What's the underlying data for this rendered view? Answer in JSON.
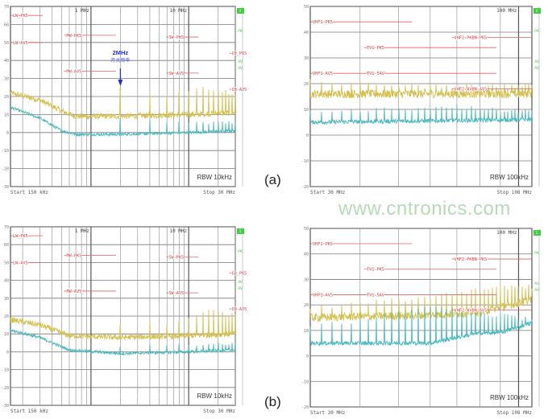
{
  "panels": {
    "a": "(a)",
    "b": "(b)"
  },
  "watermark": "www.cntronics.com",
  "annotation": {
    "freq": "2MHz",
    "text": "开关频率",
    "color": "#2233cc"
  },
  "colors": {
    "peak_trace": "#d4c050",
    "average_trace": "#4ab8c0",
    "limit": "#e06060",
    "grid": "#888888",
    "side_marker": "#44cc44"
  },
  "chart_data": [
    {
      "id": "a-left",
      "panel": "a",
      "type": "line",
      "x_scale": "log",
      "x_range_mhz": [
        0.15,
        30
      ],
      "ylim": [
        -30,
        70
      ],
      "yticks": [
        "70",
        "60",
        "50",
        "40",
        "30",
        "20",
        "10",
        "0",
        "-10",
        "-20",
        "-30"
      ],
      "grid_mhz": [
        0.2,
        0.3,
        0.4,
        0.5,
        0.6,
        0.7,
        0.8,
        0.9,
        1,
        2,
        3,
        4,
        5,
        6,
        7,
        8,
        9,
        10,
        20,
        30
      ],
      "freq_markers": [
        {
          "f": 1,
          "label": "1 MHz"
        },
        {
          "f": 10,
          "label": "10 MHz"
        }
      ],
      "start_label": "Start 150 kHz",
      "stop_label": "Stop 30 MHz",
      "rbw_label": "RBW 10kHz",
      "side_markers": [
        "1",
        "PK",
        "AV",
        "AV"
      ],
      "limits": [
        {
          "label": "LW_PK5",
          "f": [
            0.15,
            0.3
          ],
          "y": 65
        },
        {
          "label": "LW-AV5",
          "f": [
            0.15,
            0.3
          ],
          "y": 50
        },
        {
          "label": "MW-PK5",
          "f": [
            0.53,
            1.8
          ],
          "y": 54
        },
        {
          "label": "MW-AV5",
          "f": [
            0.53,
            1.8
          ],
          "y": 34
        },
        {
          "label": "SW-PK5",
          "f": [
            5.9,
            6.2
          ],
          "y": 53
        },
        {
          "label": "SW-AV5",
          "f": [
            5.9,
            6.2
          ],
          "y": 33
        },
        {
          "label": "CB_PK5",
          "f": [
            26,
            28
          ],
          "y": 44
        },
        {
          "label": "CB-AV5",
          "f": [
            26,
            28
          ],
          "y": 24
        }
      ],
      "series": [
        {
          "color": "#d4c050",
          "baseline": [
            [
              0.15,
              22
            ],
            [
              0.3,
              18
            ],
            [
              0.5,
              12
            ],
            [
              0.7,
              9
            ],
            [
              2,
              9
            ],
            [
              10,
              10
            ],
            [
              30,
              11
            ]
          ],
          "spike_spacing_mhz": 2,
          "spike_tops": [
            [
              2,
              25
            ],
            [
              6,
              21
            ],
            [
              12,
              26
            ],
            [
              16,
              25
            ],
            [
              24,
              24
            ],
            [
              30,
              22
            ]
          ]
        },
        {
          "color": "#4ab8c0",
          "baseline": [
            [
              0.15,
              14
            ],
            [
              0.3,
              8
            ],
            [
              0.5,
              1
            ],
            [
              0.7,
              -1
            ],
            [
              2,
              -1
            ],
            [
              10,
              0
            ],
            [
              30,
              1
            ]
          ],
          "spike_spacing_mhz": 2,
          "spike_tops": [
            [
              2,
              10
            ],
            [
              10,
              6
            ],
            [
              20,
              7
            ],
            [
              30,
              7
            ]
          ]
        }
      ],
      "annotated_freq_mhz": 2
    },
    {
      "id": "a-right",
      "panel": "a",
      "type": "line",
      "x_scale": "log",
      "x_range_mhz": [
        30,
        108
      ],
      "ylim": [
        -20,
        50
      ],
      "yticks": [
        "50",
        "40",
        "30",
        "20",
        "10",
        "0",
        "-10",
        "-20"
      ],
      "grid_mhz": [
        40,
        50,
        60,
        70,
        80,
        90,
        100
      ],
      "freq_markers": [
        {
          "f": 100,
          "label": "100 MHz"
        }
      ],
      "start_label": "Start 30 MHz",
      "stop_label": "Stop 108 MHz",
      "rbw_label": "RBW 100kHz",
      "side_markers": [
        "1",
        "PK",
        "AV",
        "AV"
      ],
      "limits": [
        {
          "label": "VHF1-PK5",
          "f": [
            30,
            54
          ],
          "y": 44
        },
        {
          "label": "VHF2-PKBN-PK5",
          "f": [
            68,
            108
          ],
          "y": 38
        },
        {
          "label": "TV1-PK5",
          "f": [
            41,
            88
          ],
          "y": 34
        },
        {
          "label": "VHF1-AV5",
          "f": [
            30,
            41
          ],
          "y": 24
        },
        {
          "label": "TV1-5AV",
          "f": [
            41,
            88
          ],
          "y": 24
        },
        {
          "label": "VHF2-AVBN-AV5",
          "f": [
            68,
            108
          ],
          "y": 18
        }
      ],
      "series": [
        {
          "color": "#d4c050",
          "baseline": [
            [
              30,
              16
            ],
            [
              108,
              16
            ]
          ],
          "spike_spacing_mhz": 2,
          "spike_tops": [
            [
              30,
              22
            ],
            [
              50,
              20
            ],
            [
              108,
              20
            ]
          ]
        },
        {
          "color": "#4ab8c0",
          "baseline": [
            [
              30,
              5
            ],
            [
              108,
              6
            ]
          ],
          "spike_spacing_mhz": 2,
          "spike_tops": [
            [
              30,
              10
            ],
            [
              70,
              12
            ],
            [
              108,
              10
            ]
          ]
        }
      ]
    },
    {
      "id": "b-left",
      "panel": "b",
      "type": "line",
      "x_scale": "log",
      "x_range_mhz": [
        0.15,
        30
      ],
      "ylim": [
        -30,
        70
      ],
      "yticks": [
        "70",
        "60",
        "50",
        "40",
        "30",
        "20",
        "10",
        "0",
        "-10",
        "-20",
        "-30"
      ],
      "grid_mhz": [
        0.2,
        0.3,
        0.4,
        0.5,
        0.6,
        0.7,
        0.8,
        0.9,
        1,
        2,
        3,
        4,
        5,
        6,
        7,
        8,
        9,
        10,
        20,
        30
      ],
      "freq_markers": [
        {
          "f": 1,
          "label": "1 MHz"
        },
        {
          "f": 10,
          "label": "10 MHz"
        }
      ],
      "start_label": "Start 150 kHz",
      "stop_label": "Stop 30 MHz",
      "rbw_label": "RBW 10kHz",
      "side_markers": [
        "1",
        "PK",
        "AV",
        "AV"
      ],
      "limits": [
        {
          "label": "LW_PK5",
          "f": [
            0.15,
            0.3
          ],
          "y": 65
        },
        {
          "label": "LW-AV5",
          "f": [
            0.15,
            0.3
          ],
          "y": 50
        },
        {
          "label": "MW-PK5",
          "f": [
            0.53,
            1.8
          ],
          "y": 54
        },
        {
          "label": "MW-AV5",
          "f": [
            0.53,
            1.8
          ],
          "y": 34
        },
        {
          "label": "SW-PK5",
          "f": [
            5.9,
            6.2
          ],
          "y": 53
        },
        {
          "label": "SW-AV5",
          "f": [
            5.9,
            6.2
          ],
          "y": 33
        },
        {
          "label": "CB_PK5",
          "f": [
            26,
            28
          ],
          "y": 44
        },
        {
          "label": "CB-AV5",
          "f": [
            26,
            28
          ],
          "y": 24
        }
      ],
      "series": [
        {
          "color": "#d4c050",
          "baseline": [
            [
              0.15,
              18
            ],
            [
              0.3,
              15
            ],
            [
              0.6,
              9
            ],
            [
              2,
              8
            ],
            [
              10,
              9
            ],
            [
              30,
              10
            ]
          ],
          "spike_spacing_mhz": 2,
          "spike_tops": [
            [
              2,
              16
            ],
            [
              6,
              17
            ],
            [
              12,
              22
            ],
            [
              16,
              24
            ],
            [
              24,
              22
            ],
            [
              30,
              22
            ]
          ]
        },
        {
          "color": "#4ab8c0",
          "baseline": [
            [
              0.15,
              12
            ],
            [
              0.3,
              8
            ],
            [
              0.6,
              1
            ],
            [
              2,
              -1
            ],
            [
              10,
              0
            ],
            [
              30,
              1
            ]
          ],
          "spike_spacing_mhz": 2,
          "spike_tops": [
            [
              2,
              4
            ],
            [
              30,
              6
            ]
          ]
        }
      ]
    },
    {
      "id": "b-right",
      "panel": "b",
      "type": "line",
      "x_scale": "log",
      "x_range_mhz": [
        30,
        108
      ],
      "ylim": [
        -20,
        50
      ],
      "yticks": [
        "50",
        "40",
        "30",
        "20",
        "10",
        "0",
        "-10",
        "-20"
      ],
      "grid_mhz": [
        40,
        50,
        60,
        70,
        80,
        90,
        100
      ],
      "freq_markers": [
        {
          "f": 100,
          "label": "100 MHz"
        }
      ],
      "start_label": "Start 30 MHz",
      "stop_label": "Stop 108 MHz",
      "rbw_label": "RBW 100kHz",
      "side_markers": [
        "1",
        "PK",
        "AV",
        "AV"
      ],
      "limits": [
        {
          "label": "VHF1-PK5",
          "f": [
            30,
            54
          ],
          "y": 44
        },
        {
          "label": "VHF2-PKBN-PK5",
          "f": [
            68,
            108
          ],
          "y": 38
        },
        {
          "label": "TV1-PK5",
          "f": [
            41,
            88
          ],
          "y": 34
        },
        {
          "label": "VHF1-AV5",
          "f": [
            30,
            41
          ],
          "y": 24
        },
        {
          "label": "TV1-5AV",
          "f": [
            41,
            88
          ],
          "y": 24
        },
        {
          "label": "VHF2-AVBN-AV5",
          "f": [
            68,
            108
          ],
          "y": 18
        }
      ],
      "series": [
        {
          "color": "#d4c050",
          "baseline": [
            [
              30,
              15
            ],
            [
              60,
              16
            ],
            [
              80,
              17
            ],
            [
              108,
              22
            ]
          ],
          "spike_spacing_mhz": 2,
          "spike_tops": [
            [
              30,
              20
            ],
            [
              60,
              24
            ],
            [
              90,
              28
            ],
            [
              108,
              28
            ]
          ]
        },
        {
          "color": "#4ab8c0",
          "baseline": [
            [
              30,
              5
            ],
            [
              60,
              5
            ],
            [
              80,
              9
            ],
            [
              90,
              9
            ],
            [
              108,
              13
            ]
          ],
          "spike_spacing_mhz": 2,
          "spike_tops": [
            [
              30,
              12
            ],
            [
              60,
              20
            ],
            [
              90,
              17
            ],
            [
              108,
              15
            ]
          ]
        }
      ]
    }
  ]
}
